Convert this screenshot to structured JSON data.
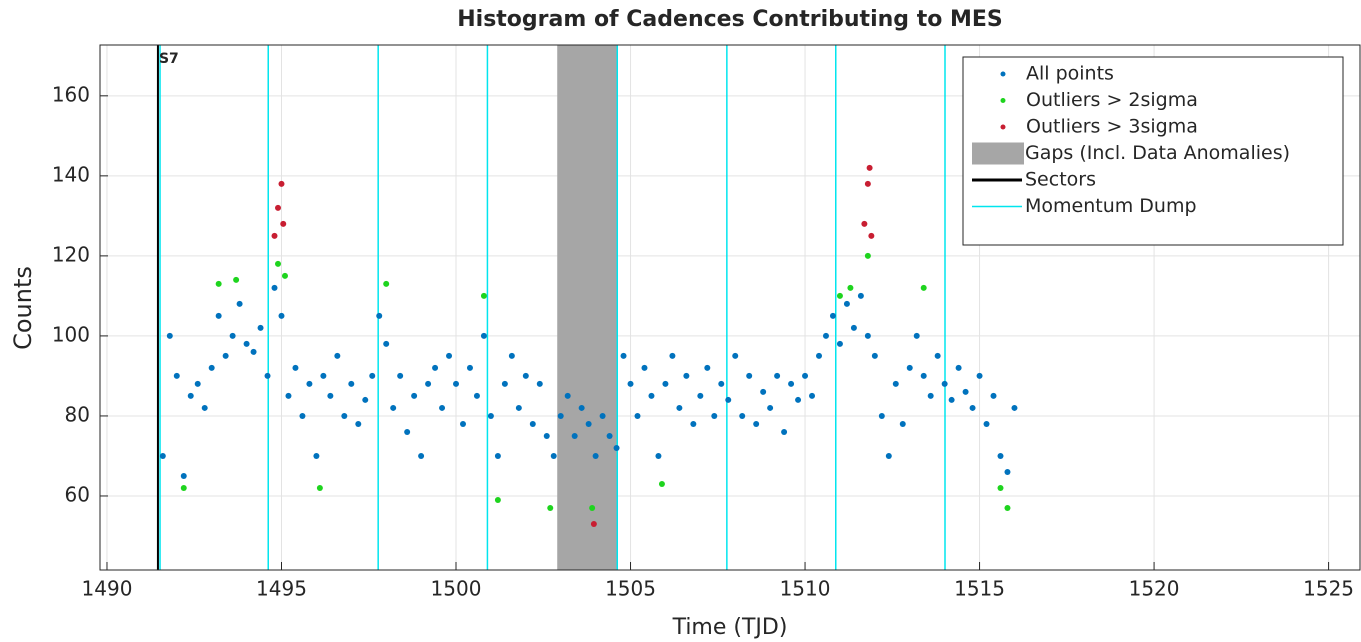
{
  "chart_data": {
    "type": "scatter",
    "title": "Histogram of Cadences Contributing to MES",
    "xlabel": "Time (TJD)",
    "ylabel": "Counts",
    "xlim": [
      1489.8,
      1525.9
    ],
    "ylim": [
      41.5,
      172.7
    ],
    "xticks": [
      1490,
      1495,
      1500,
      1505,
      1510,
      1515,
      1520,
      1525
    ],
    "yticks": [
      60,
      80,
      100,
      120,
      140,
      160
    ],
    "grid": true,
    "legend": "ne",
    "gap": {
      "name": "Gaps (Incl. Data Anomalies)",
      "x": [
        1502.9,
        1504.6
      ],
      "color": "#a6a6a6"
    },
    "sectors": {
      "name": "Sectors",
      "x": [
        1491.46
      ],
      "labels": [
        "S7"
      ],
      "color": "#000000"
    },
    "momentum_dumps": {
      "name": "Momentum Dump",
      "x": [
        1491.52,
        1494.62,
        1497.77,
        1500.9,
        1504.62,
        1507.76,
        1510.88,
        1514.01
      ],
      "color": "#00e5ee"
    },
    "series": [
      {
        "name": "All points",
        "color": "#0072bd",
        "x": [
          1491.6,
          1491.8,
          1492.0,
          1492.2,
          1492.4,
          1492.6,
          1492.8,
          1493.0,
          1493.2,
          1493.4,
          1493.6,
          1493.8,
          1494.0,
          1494.2,
          1494.4,
          1494.6,
          1494.8,
          1495.0,
          1495.2,
          1495.4,
          1495.6,
          1495.8,
          1496.0,
          1496.2,
          1496.4,
          1496.6,
          1496.8,
          1497.0,
          1497.2,
          1497.4,
          1497.6,
          1497.8,
          1498.0,
          1498.2,
          1498.4,
          1498.6,
          1498.8,
          1499.0,
          1499.2,
          1499.4,
          1499.6,
          1499.8,
          1500.0,
          1500.2,
          1500.4,
          1500.6,
          1500.8,
          1501.0,
          1501.2,
          1501.4,
          1501.6,
          1501.8,
          1502.0,
          1502.2,
          1502.4,
          1502.6,
          1502.8,
          1503.0,
          1503.2,
          1503.4,
          1503.6,
          1503.8,
          1504.0,
          1504.2,
          1504.4,
          1504.6,
          1504.8,
          1505.0,
          1505.2,
          1505.4,
          1505.6,
          1505.8,
          1506.0,
          1506.2,
          1506.4,
          1506.6,
          1506.8,
          1507.0,
          1507.2,
          1507.4,
          1507.6,
          1507.8,
          1508.0,
          1508.2,
          1508.4,
          1508.6,
          1508.8,
          1509.0,
          1509.2,
          1509.4,
          1509.6,
          1509.8,
          1510.0,
          1510.2,
          1510.4,
          1510.6,
          1510.8,
          1511.0,
          1511.2,
          1511.4,
          1511.6,
          1511.8,
          1512.0,
          1512.2,
          1512.4,
          1512.6,
          1512.8,
          1513.0,
          1513.2,
          1513.4,
          1513.6,
          1513.8,
          1514.0,
          1514.2,
          1514.4,
          1514.6,
          1514.8,
          1515.0,
          1515.2,
          1515.4,
          1515.6,
          1515.8,
          1516.0
        ],
        "y": [
          70,
          100,
          90,
          65,
          85,
          88,
          82,
          92,
          105,
          95,
          100,
          108,
          98,
          96,
          102,
          90,
          112,
          105,
          85,
          92,
          80,
          88,
          70,
          90,
          85,
          95,
          80,
          88,
          78,
          84,
          90,
          105,
          98,
          82,
          90,
          76,
          85,
          70,
          88,
          92,
          82,
          95,
          88,
          78,
          92,
          85,
          100,
          80,
          70,
          88,
          95,
          82,
          90,
          78,
          88,
          75,
          70,
          80,
          85,
          75,
          82,
          78,
          70,
          80,
          75,
          72,
          95,
          88,
          80,
          92,
          85,
          70,
          88,
          95,
          82,
          90,
          78,
          85,
          92,
          80,
          88,
          84,
          95,
          80,
          90,
          78,
          86,
          82,
          90,
          76,
          88,
          84,
          90,
          85,
          95,
          100,
          105,
          98,
          108,
          102,
          110,
          100,
          95,
          80,
          70,
          88,
          78,
          92,
          100,
          90,
          85,
          95,
          88,
          84,
          92,
          86,
          82,
          90,
          78,
          85,
          70,
          66,
          82
        ]
      },
      {
        "name": "Outliers > 2sigma",
        "color": "#1ed41e",
        "x": [
          1492.2,
          1493.2,
          1493.7,
          1494.9,
          1495.1,
          1496.1,
          1498.0,
          1500.8,
          1501.2,
          1502.7,
          1503.9,
          1505.9,
          1511.0,
          1511.3,
          1511.8,
          1513.4,
          1515.6,
          1515.8
        ],
        "y": [
          62,
          113,
          114,
          118,
          115,
          62,
          113,
          110,
          59,
          57,
          57,
          63,
          110,
          112,
          120,
          112,
          62,
          57
        ]
      },
      {
        "name": "Outliers > 3sigma",
        "color": "#c81e32",
        "x": [
          1494.8,
          1494.9,
          1495.0,
          1495.05,
          1503.95,
          1511.7,
          1511.8,
          1511.85,
          1511.9
        ],
        "y": [
          125,
          132,
          138,
          128,
          53,
          128,
          138,
          142,
          125
        ]
      }
    ]
  }
}
